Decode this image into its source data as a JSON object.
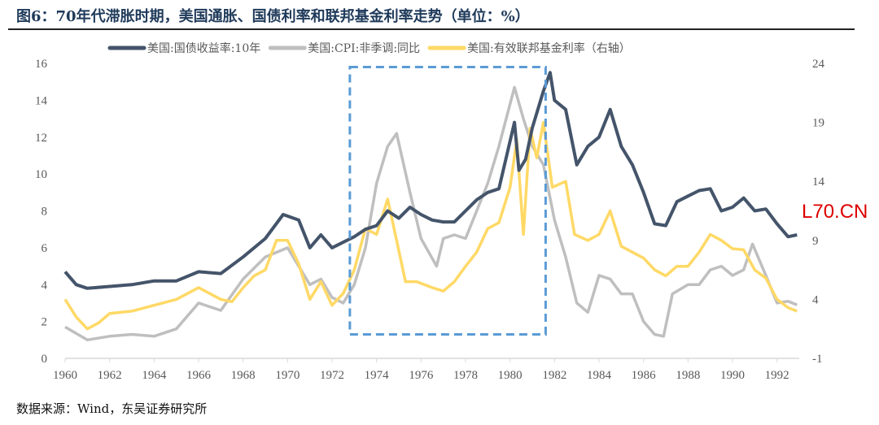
{
  "title": "图6：70年代滞胀时期，美国通胀、国债利率和联邦基金利率走势（单位：%）",
  "source": "数据来源：Wind，东吴证券研究所",
  "watermark": "L70.CN",
  "chart_data": {
    "type": "line",
    "title": "",
    "xlim": [
      1960,
      1993
    ],
    "ylim_left": [
      0,
      16
    ],
    "ylim_right": [
      -1,
      24
    ],
    "x_ticks": [
      "1960",
      "1962",
      "1964",
      "1966",
      "1968",
      "1970",
      "1972",
      "1974",
      "1976",
      "1978",
      "1980",
      "1982",
      "1984",
      "1986",
      "1988",
      "1990",
      "1992"
    ],
    "y_ticks_left": [
      "0",
      "2",
      "4",
      "6",
      "8",
      "10",
      "12",
      "14",
      "16"
    ],
    "y_ticks_right": [
      "-1",
      "4",
      "9",
      "14",
      "19",
      "24"
    ],
    "legend_placement": "top",
    "grid": false,
    "highlight_box": {
      "x": [
        1972.8,
        1981.6
      ],
      "y_left": [
        1.3,
        15.8
      ],
      "color": "#5b9bd5",
      "style": "dashed"
    },
    "series": [
      {
        "name": "美国:国债收益率:10年",
        "axis": "left",
        "color": "#44546a",
        "x": [
          1960,
          1960.5,
          1961,
          1962,
          1963,
          1964,
          1965,
          1966,
          1967,
          1968,
          1969,
          1969.8,
          1970.5,
          1971,
          1971.5,
          1972,
          1972.5,
          1973,
          1973.5,
          1974,
          1974.5,
          1975,
          1975.5,
          1976,
          1976.5,
          1977,
          1977.5,
          1978,
          1978.5,
          1979,
          1979.5,
          1980.2,
          1980.4,
          1980.7,
          1981,
          1981.5,
          1981.8,
          1982,
          1982.5,
          1983,
          1983.5,
          1984,
          1984.5,
          1985,
          1985.5,
          1986,
          1986.5,
          1987,
          1987.5,
          1988,
          1988.5,
          1989,
          1989.5,
          1990,
          1990.5,
          1991,
          1991.5,
          1992,
          1992.5,
          1992.9
        ],
        "y": [
          4.7,
          4.0,
          3.8,
          3.9,
          4.0,
          4.2,
          4.2,
          4.7,
          4.6,
          5.5,
          6.5,
          7.8,
          7.5,
          6.0,
          6.7,
          6.0,
          6.3,
          6.6,
          7.0,
          7.2,
          8.0,
          7.6,
          8.2,
          7.8,
          7.5,
          7.4,
          7.4,
          8.0,
          8.6,
          9.0,
          9.2,
          12.8,
          10.2,
          10.8,
          12.5,
          14.5,
          15.5,
          14.0,
          13.5,
          10.5,
          11.5,
          12.0,
          13.5,
          11.5,
          10.5,
          9.0,
          7.3,
          7.2,
          8.5,
          8.8,
          9.1,
          9.2,
          8.0,
          8.2,
          8.7,
          8.0,
          8.1,
          7.3,
          6.6,
          6.7
        ]
      },
      {
        "name": "美国:CPI:非季调:同比",
        "axis": "left",
        "color": "#bfbfbf",
        "x": [
          1960,
          1961,
          1962,
          1963,
          1964,
          1965,
          1966,
          1967,
          1968,
          1969,
          1970,
          1971,
          1971.5,
          1972,
          1972.5,
          1973,
          1973.5,
          1974,
          1974.5,
          1974.9,
          1975.5,
          1976,
          1976.7,
          1977,
          1977.5,
          1978,
          1978.5,
          1979,
          1979.5,
          1980.2,
          1980.6,
          1981,
          1981.5,
          1982,
          1982.5,
          1983,
          1983.5,
          1984,
          1984.5,
          1985,
          1985.5,
          1986,
          1986.5,
          1986.9,
          1987.3,
          1988,
          1988.5,
          1989,
          1989.5,
          1990,
          1990.5,
          1990.9,
          1991.5,
          1992,
          1992.5,
          1992.9
        ],
        "y": [
          1.7,
          1.0,
          1.2,
          1.3,
          1.2,
          1.6,
          3.0,
          2.6,
          4.3,
          5.5,
          6.0,
          4.0,
          4.3,
          3.3,
          3.0,
          4.0,
          6.0,
          9.5,
          11.5,
          12.2,
          9.0,
          6.5,
          5.0,
          6.5,
          6.7,
          6.5,
          8.0,
          9.5,
          11.5,
          14.7,
          13.0,
          11.5,
          10.5,
          7.5,
          5.5,
          3.0,
          2.5,
          4.5,
          4.3,
          3.5,
          3.5,
          2.0,
          1.3,
          1.2,
          3.5,
          4.0,
          4.0,
          4.8,
          5.0,
          4.5,
          4.8,
          6.2,
          4.5,
          3.0,
          3.1,
          2.9
        ]
      },
      {
        "name": "美国:有效联邦基金利率（右轴）",
        "axis": "right",
        "color": "#ffd966",
        "x": [
          1960,
          1960.5,
          1961,
          1961.5,
          1962,
          1963,
          1964,
          1965,
          1966,
          1967,
          1967.5,
          1968,
          1968.5,
          1969,
          1969.5,
          1970,
          1970.5,
          1971,
          1971.5,
          1972,
          1972.5,
          1973,
          1973.5,
          1974,
          1974.5,
          1974.9,
          1975.3,
          1975.8,
          1976.5,
          1977,
          1977.5,
          1978,
          1978.5,
          1979,
          1979.5,
          1980,
          1980.3,
          1980.6,
          1980.9,
          1981.2,
          1981.5,
          1981.9,
          1982.5,
          1982.9,
          1983.5,
          1984,
          1984.5,
          1985,
          1985.5,
          1986,
          1986.5,
          1987,
          1987.5,
          1988,
          1988.5,
          1989,
          1989.5,
          1990,
          1990.5,
          1991,
          1991.5,
          1992,
          1992.5,
          1992.9
        ],
        "y": [
          4.0,
          2.5,
          1.5,
          2.0,
          2.8,
          3.0,
          3.5,
          4.0,
          5.0,
          4.0,
          3.8,
          5.0,
          6.0,
          6.5,
          9.0,
          9.0,
          7.0,
          4.0,
          5.5,
          3.5,
          4.5,
          6.5,
          10.0,
          9.5,
          12.5,
          9.0,
          5.5,
          5.5,
          5.0,
          4.7,
          5.5,
          6.8,
          8.0,
          10.0,
          10.5,
          13.5,
          17.5,
          9.5,
          18.5,
          16.0,
          19.0,
          13.5,
          14.0,
          9.5,
          9.0,
          9.5,
          11.5,
          8.5,
          8.0,
          7.5,
          6.5,
          6.0,
          6.8,
          6.8,
          8.0,
          9.5,
          9.0,
          8.3,
          8.2,
          6.5,
          5.8,
          4.0,
          3.3,
          3.0
        ]
      }
    ]
  }
}
